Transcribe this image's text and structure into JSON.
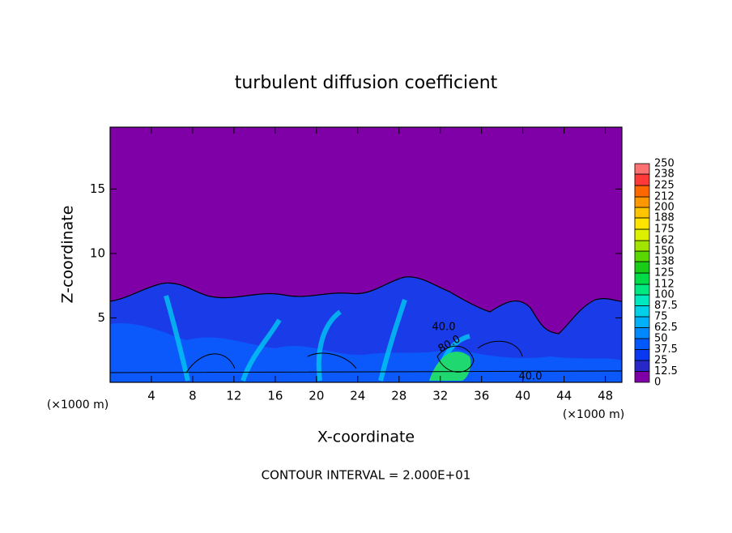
{
  "chart_data": {
    "type": "contour",
    "title": "turbulent diffusion coefficient",
    "x_label": "X-coordinate",
    "y_label": "Z-coordinate",
    "x_unit": "(×1000 m)",
    "annotation": "CONTOUR INTERVAL = 2.000E+01",
    "contour_labels": [
      "40.0",
      "80.0",
      "40.0"
    ],
    "xlim": [
      0,
      49.6
    ],
    "xticks": [
      4,
      8,
      12,
      16,
      20,
      24,
      28,
      32,
      36,
      40,
      44,
      48
    ],
    "ylim": [
      0,
      19.8
    ],
    "yticks": [
      5,
      10,
      15
    ],
    "levels": [
      0,
      12.5,
      25,
      37.5,
      50,
      62.5,
      75,
      87.5,
      100,
      112,
      125,
      138,
      150,
      162,
      175,
      188,
      200,
      212,
      225,
      238,
      250
    ],
    "colors": [
      "#8000a8",
      "#2828c8",
      "#0838f0",
      "#0058ff",
      "#0088ff",
      "#00b0f8",
      "#00d0e8",
      "#00e8c0",
      "#00e880",
      "#00dc48",
      "#18cc18",
      "#58d800",
      "#a0e400",
      "#dcf000",
      "#ffe400",
      "#ffc400",
      "#ff9800",
      "#ff6800",
      "#ff3838",
      "#ff7070"
    ]
  }
}
